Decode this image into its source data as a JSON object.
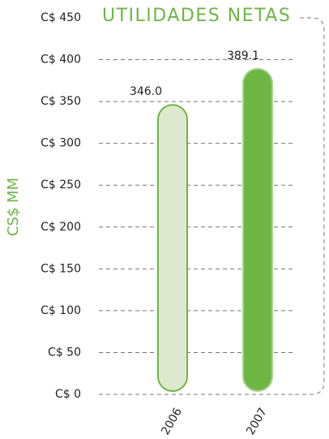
{
  "chart_data": {
    "type": "bar",
    "title": "UTILIDADES NETAS",
    "y_label": "CS$ MM",
    "categories": [
      "2006",
      "2007"
    ],
    "values": [
      346.0,
      389.1
    ],
    "value_labels": [
      "346.0",
      "389.1"
    ],
    "colors": [
      "#dde9cf",
      "#6db643"
    ],
    "stroke_colors": [
      "#6db643",
      "#a9d38f"
    ],
    "title_color": "#6db643",
    "ylim": [
      0,
      450
    ],
    "yticks": [
      {
        "value": 0,
        "label": "C$ 0"
      },
      {
        "value": 50,
        "label": "C$ 50"
      },
      {
        "value": 100,
        "label": "C$ 100"
      },
      {
        "value": 150,
        "label": "C$ 150"
      },
      {
        "value": 200,
        "label": "C$ 200"
      },
      {
        "value": 250,
        "label": "C$ 250"
      },
      {
        "value": 300,
        "label": "C$ 300"
      },
      {
        "value": 350,
        "label": "C$ 350"
      },
      {
        "value": 400,
        "label": "C$ 400"
      },
      {
        "value": 450,
        "label": "C$ 450"
      }
    ],
    "grid": true
  }
}
